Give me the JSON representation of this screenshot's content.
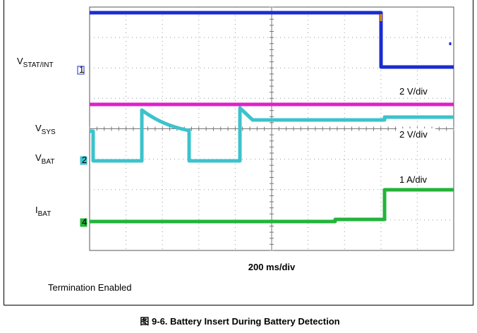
{
  "figure": {
    "channels": [
      {
        "name": "V",
        "sub": "STAT/INT",
        "marker": "1",
        "scale": "2 V/div"
      },
      {
        "name": "V",
        "sub": "SYS",
        "scale": "2 V/div"
      },
      {
        "name": "V",
        "sub": "BAT",
        "marker": "2"
      },
      {
        "name": "I",
        "sub": "BAT",
        "marker": "4",
        "scale": "1 A/div"
      }
    ],
    "timebase": "200 ms/div",
    "note": "Termination Enabled",
    "caption": "图 9-6. Battery Insert During Battery Detection"
  }
}
